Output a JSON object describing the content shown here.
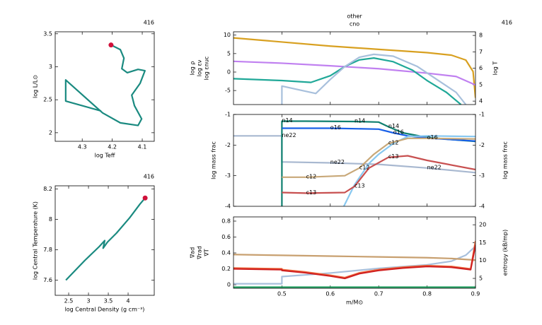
{
  "chart_data": [
    {
      "type": "line",
      "model": "416",
      "xlabel": "log Teff",
      "ylabel": "log L/L⊙",
      "xlim": [
        4.39,
        4.06
      ],
      "ylim": [
        1.87,
        3.53
      ],
      "xticks": [
        4.3,
        4.2,
        4.1
      ],
      "yticks": [
        2,
        2.5,
        3,
        3.5
      ],
      "show_xticklabels": true,
      "legend": "none",
      "series": [
        {
          "color": "#1a8a80",
          "end_marker": "#d0103a",
          "x": [
            4.237,
            4.355,
            4.355,
            4.232,
            4.173,
            4.114,
            4.102,
            4.126,
            4.135,
            4.107,
            4.091,
            4.114,
            4.15,
            4.168,
            4.161,
            4.173,
            4.204
          ],
          "values": [
            2.33,
            2.48,
            2.8,
            2.3,
            2.15,
            2.11,
            2.21,
            2.41,
            2.57,
            2.75,
            2.94,
            2.96,
            2.91,
            2.97,
            3.13,
            3.26,
            3.33
          ]
        }
      ]
    },
    {
      "type": "line",
      "model": "416",
      "xlabel": "log Central Density (g cm⁻³)",
      "ylabel": "log Central Temperature (K)",
      "xlim": [
        2.16,
        4.66
      ],
      "ylim": [
        7.5,
        8.22
      ],
      "xticks": [
        2.5,
        3,
        3.5,
        4
      ],
      "yticks": [
        7.6,
        7.8,
        8,
        8.2
      ],
      "show_xticklabels": true,
      "legend": "none",
      "series": [
        {
          "color": "#1a8a80",
          "end_marker": "#d0103a",
          "x": [
            2.43,
            2.91,
            3.27,
            3.41,
            3.37,
            3.48,
            3.71,
            4.04,
            4.3,
            4.43
          ],
          "values": [
            7.6,
            7.73,
            7.82,
            7.86,
            7.81,
            7.85,
            7.91,
            8.01,
            8.1,
            8.14
          ]
        }
      ]
    },
    {
      "type": "line",
      "title": "other",
      "subtitle": "cno",
      "model": "416",
      "xlim": [
        0.4,
        0.9
      ],
      "xticks": [
        0.5,
        0.6,
        0.7,
        0.8,
        0.9
      ],
      "show_xticklabels": false,
      "ylim": [
        -8.8,
        10.9
      ],
      "yticks": [
        -5,
        0,
        5,
        10
      ],
      "y2lim": [
        3.79,
        8.22
      ],
      "y2ticks": [
        4,
        5,
        6,
        7,
        8
      ],
      "legend": "side",
      "series": [
        {
          "name": "log T",
          "color": "#d8a020",
          "axis": "y2",
          "x": [
            0.4,
            0.5,
            0.6,
            0.7,
            0.8,
            0.85,
            0.88,
            0.895,
            0.9
          ],
          "values": [
            7.85,
            7.6,
            7.35,
            7.15,
            6.95,
            6.8,
            6.5,
            5.8,
            4.2
          ]
        },
        {
          "name": "log ρ",
          "color": "#c080f0",
          "x": [
            0.4,
            0.5,
            0.6,
            0.7,
            0.8,
            0.86,
            0.9
          ],
          "values": [
            2.9,
            2.4,
            1.7,
            0.9,
            -0.3,
            -1.2,
            -3.5
          ]
        },
        {
          "name": "log εν",
          "color": "#20a898",
          "x": [
            0.4,
            0.5,
            0.56,
            0.6,
            0.63,
            0.66,
            0.69,
            0.73,
            0.77,
            0.8,
            0.84,
            0.87
          ],
          "values": [
            -1.8,
            -2.3,
            -2.8,
            -1,
            1.5,
            3.3,
            3.8,
            2.8,
            0.5,
            -2.3,
            -5.5,
            -8.8
          ]
        },
        {
          "name": "log εnuc",
          "color": "#a8c0dc",
          "x": [
            0.5,
            0.5,
            0.57,
            0.6,
            0.63,
            0.66,
            0.69,
            0.73,
            0.78,
            0.82,
            0.86,
            0.88
          ],
          "values": [
            -8.8,
            -3.8,
            -5.8,
            -2,
            1.5,
            4,
            4.8,
            4.3,
            1.5,
            -2,
            -5.5,
            -8.8
          ]
        }
      ]
    },
    {
      "type": "line",
      "ylabel": "log mass frac",
      "y2label": "log mass frac",
      "xlim": [
        0.4,
        0.9
      ],
      "xticks": [
        0.5,
        0.6,
        0.7,
        0.8,
        0.9
      ],
      "show_xticklabels": false,
      "ylim": [
        -4,
        -1
      ],
      "yticks": [
        -1,
        -2,
        -3,
        -4
      ],
      "y2lim": [
        -4,
        -1
      ],
      "y2ticks": [
        -1,
        -2,
        -3,
        -4
      ],
      "legend": "inline",
      "series": [
        {
          "name": "ne22",
          "color": "#a8b8d0",
          "x": [
            0.4,
            0.5,
            0.5,
            0.6,
            0.7,
            0.8,
            0.9
          ],
          "values": [
            -1.7,
            -1.7,
            -2.55,
            -2.58,
            -2.63,
            -2.75,
            -2.9
          ]
        },
        {
          "name": "n14",
          "color": "#108070",
          "x": [
            0.5,
            0.5,
            0.55,
            0.65,
            0.7,
            0.72,
            0.75,
            0.8,
            0.85,
            0.9
          ],
          "values": [
            -4,
            -1.22,
            -1.22,
            -1.23,
            -1.25,
            -1.4,
            -1.6,
            -1.75,
            -1.82,
            -1.88
          ]
        },
        {
          "name": "o16",
          "color": "#1860e8",
          "x": [
            0.5,
            0.6,
            0.7,
            0.73,
            0.76,
            0.8,
            0.85,
            0.9
          ],
          "values": [
            -1.45,
            -1.45,
            -1.48,
            -1.6,
            -1.7,
            -1.77,
            -1.82,
            -1.87
          ]
        },
        {
          "color": "#88c8f0",
          "x": [
            0.628,
            0.65,
            0.68,
            0.7,
            0.73,
            0.76,
            0.8,
            0.9
          ],
          "values": [
            -4,
            -3.3,
            -2.6,
            -2.3,
            -1.95,
            -1.72,
            -1.7,
            -1.72
          ]
        },
        {
          "name": "c12",
          "color": "#c8a878",
          "x": [
            0.5,
            0.55,
            0.63,
            0.66,
            0.69,
            0.72,
            0.76,
            0.8,
            0.9
          ],
          "values": [
            -3.05,
            -3.05,
            -3.0,
            -2.75,
            -2.3,
            -1.95,
            -1.78,
            -1.78,
            -1.8
          ]
        },
        {
          "name": "c13",
          "color": "#c85050",
          "x": [
            0.5,
            0.55,
            0.63,
            0.65,
            0.68,
            0.72,
            0.76,
            0.8,
            0.9
          ],
          "values": [
            -3.55,
            -3.57,
            -3.55,
            -3.35,
            -2.75,
            -2.4,
            -2.35,
            -2.5,
            -2.8
          ]
        }
      ]
    },
    {
      "type": "line",
      "xlabel": "m/M⊙",
      "y2label": "entropy (kB/mp)",
      "xlim": [
        0.4,
        0.9
      ],
      "xticks": [
        0.5,
        0.6,
        0.7,
        0.8,
        0.9
      ],
      "show_xticklabels": true,
      "ylim": [
        -0.044,
        0.853
      ],
      "yticks": [
        0,
        0.2,
        0.4,
        0.6,
        0.8
      ],
      "y2lim": [
        2.24,
        22.2
      ],
      "y2ticks": [
        5,
        10,
        15,
        20
      ],
      "legend": "side",
      "series": [
        {
          "color": "#20a060",
          "x": [
            0.4,
            0.9
          ],
          "values": [
            -0.03,
            -0.03
          ]
        },
        {
          "color": "#a8c0dc",
          "axis": "y2",
          "x": [
            0.4,
            0.5,
            0.5,
            0.6,
            0.7,
            0.8,
            0.85,
            0.88,
            0.9
          ],
          "values": [
            3.5,
            3.5,
            5.5,
            6.5,
            7.8,
            8.8,
            9.8,
            11.5,
            14
          ]
        },
        {
          "name": "∇ad",
          "color": "#c8a070",
          "x": [
            0.4,
            0.5,
            0.6,
            0.7,
            0.8,
            0.85,
            0.9
          ],
          "values": [
            0.38,
            0.37,
            0.36,
            0.35,
            0.34,
            0.33,
            0.31
          ]
        },
        {
          "name": "∇rad",
          "color": "#f07040",
          "x": [
            0.4,
            0.5,
            0.5,
            0.55,
            0.6,
            0.63,
            0.66,
            0.7,
            0.75,
            0.8,
            0.85,
            0.89,
            0.9
          ],
          "values": [
            0.21,
            0.2,
            0.19,
            0.16,
            0.12,
            0.09,
            0.15,
            0.19,
            0.22,
            0.24,
            0.23,
            0.2,
            0.55
          ]
        },
        {
          "name": "∇T",
          "color": "#d02020",
          "x": [
            0.4,
            0.5,
            0.5,
            0.55,
            0.6,
            0.63,
            0.66,
            0.7,
            0.75,
            0.8,
            0.85,
            0.89,
            0.9
          ],
          "values": [
            0.2,
            0.19,
            0.18,
            0.15,
            0.11,
            0.08,
            0.14,
            0.18,
            0.21,
            0.23,
            0.22,
            0.19,
            0.5
          ]
        }
      ]
    }
  ]
}
